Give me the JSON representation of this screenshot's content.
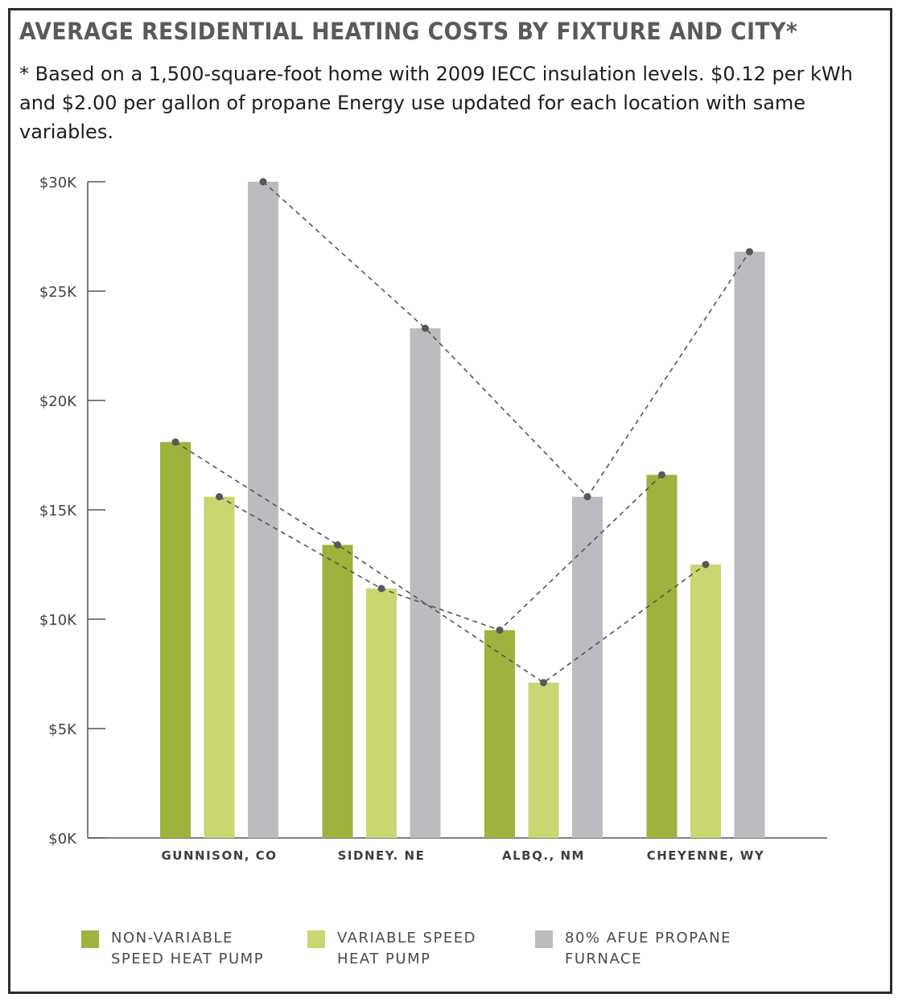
{
  "chart_data": {
    "type": "bar",
    "title": "AVERAGE RESIDENTIAL HEATING COSTS BY FIXTURE AND CITY*",
    "subtitle": "* Based on a 1,500-square-foot home with 2009 IECC insulation levels. $0.12 per kWh and $2.00 per gallon of propane  Energy use updated for each location with same variables.",
    "categories": [
      "GUNNISON, CO",
      "SIDNEY. NE",
      "ALBQ., NM",
      "CHEYENNE, WY"
    ],
    "series": [
      {
        "name": "NON-VARIABLE SPEED HEAT PUMP",
        "legend_lines": [
          "NON-VARIABLE",
          "SPEED HEAT PUMP"
        ],
        "color": "#9db33d",
        "values": [
          18100,
          13400,
          9500,
          16600
        ]
      },
      {
        "name": "VARIABLE SPEED HEAT PUMP",
        "legend_lines": [
          "VARIABLE SPEED",
          "HEAT PUMP"
        ],
        "color": "#c9d672",
        "values": [
          15600,
          11400,
          7100,
          12500
        ]
      },
      {
        "name": "80% AFUE PROPANE FURNACE",
        "legend_lines": [
          "80% AFUE PROPANE",
          "FURNACE"
        ],
        "color": "#bbbcc0",
        "values": [
          30000,
          23300,
          15600,
          26800
        ]
      }
    ],
    "trend_lines": [
      {
        "points": [
          [
            0,
            0
          ],
          [
            1,
            0
          ],
          [
            2,
            1
          ],
          [
            3,
            1
          ]
        ]
      },
      {
        "points": [
          [
            0,
            1
          ],
          [
            1,
            1
          ],
          [
            2,
            0
          ],
          [
            3,
            0
          ]
        ]
      },
      {
        "points": [
          [
            0,
            2
          ],
          [
            1,
            2
          ],
          [
            2,
            2
          ],
          [
            3,
            2
          ]
        ]
      }
    ],
    "y_ticks": [
      {
        "value": 0,
        "label": "$0K"
      },
      {
        "value": 5000,
        "label": "$5K"
      },
      {
        "value": 10000,
        "label": "$10K"
      },
      {
        "value": 15000,
        "label": "$15K"
      },
      {
        "value": 20000,
        "label": "$20K"
      },
      {
        "value": 25000,
        "label": "$25K"
      },
      {
        "value": 30000,
        "label": "$30K"
      }
    ],
    "ylim": [
      0,
      30000
    ],
    "xlabel": "",
    "ylabel": "",
    "grid": false,
    "legend_position": "bottom"
  }
}
